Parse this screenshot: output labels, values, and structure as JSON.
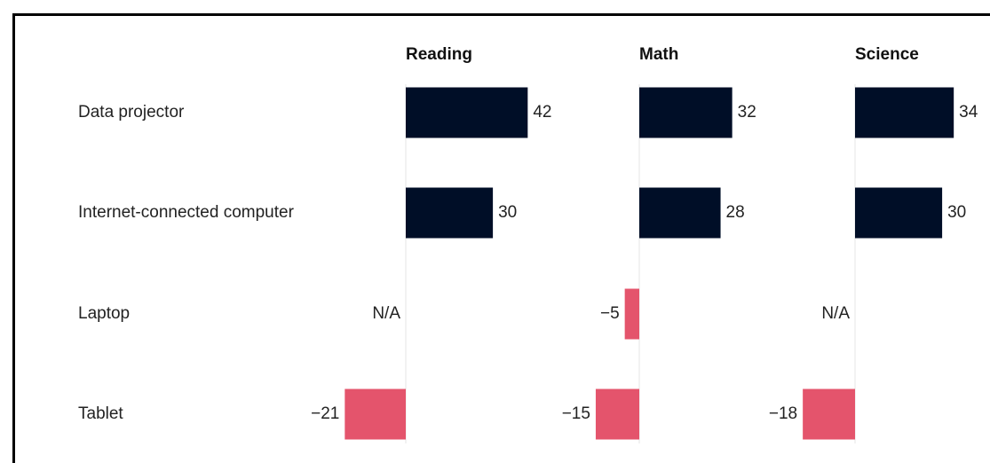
{
  "chart_data": {
    "type": "bar",
    "categories": [
      "Data projector",
      "Internet-connected computer",
      "Laptop",
      "Tablet"
    ],
    "color": "#000e27",
    "negative_color": "#e4546c",
    "series": [
      {
        "name": "Reading",
        "values": [
          42,
          30,
          null,
          -21
        ],
        "value_labels": [
          "42",
          "30",
          "N/A",
          "−21"
        ]
      },
      {
        "name": "Math",
        "values": [
          32,
          28,
          -5,
          -15
        ],
        "value_labels": [
          "32",
          "28",
          "−5",
          "−15"
        ]
      },
      {
        "name": "Science",
        "values": [
          34,
          30,
          null,
          -18
        ],
        "value_labels": [
          "34",
          "30",
          "N/A",
          "−18"
        ]
      }
    ]
  }
}
